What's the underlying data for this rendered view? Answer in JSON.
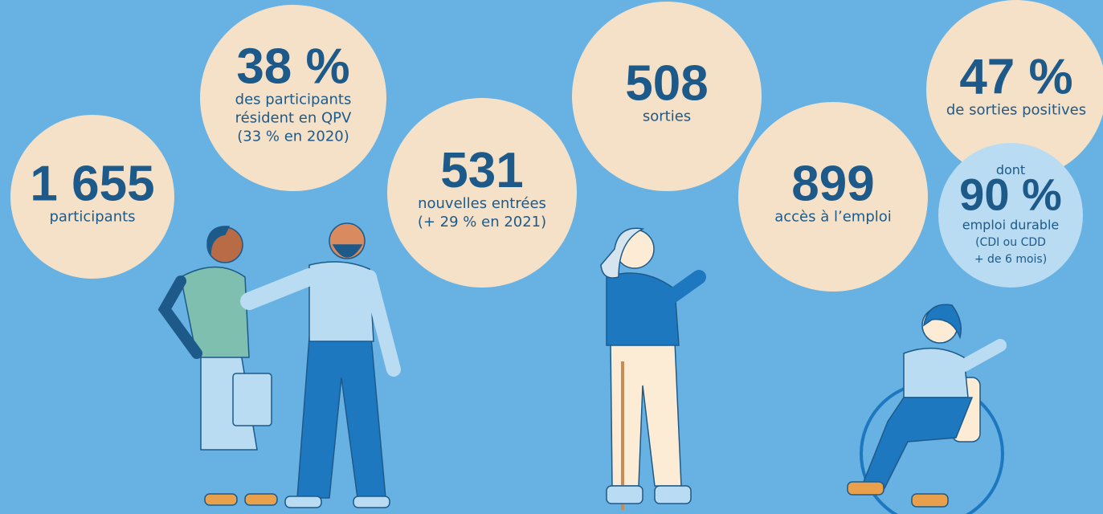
{
  "stats": [
    {
      "value": "1 655",
      "lines": [
        "participants"
      ]
    },
    {
      "value": "38 %",
      "lines": [
        "des participants",
        "résident en QPV",
        "(33 % en 2020)"
      ]
    },
    {
      "value": "531",
      "lines": [
        "nouvelles entrées",
        "(+ 29 % en 2021)"
      ]
    },
    {
      "value": "508",
      "lines": [
        "sorties"
      ]
    },
    {
      "value": "899",
      "lines": [
        "accès à l’emploi"
      ]
    },
    {
      "value": "47 %",
      "lines": [
        "de sorties positives"
      ]
    },
    {
      "intro": "dont",
      "value": "90 %",
      "lines": [
        "emploi durable",
        "(CDI ou CDD",
        "+ de 6 mois)"
      ]
    }
  ]
}
